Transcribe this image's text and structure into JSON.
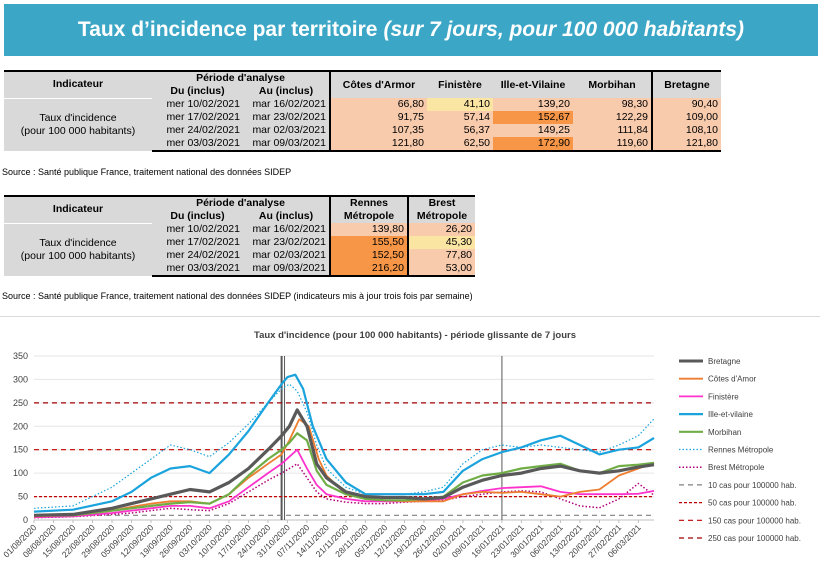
{
  "header": {
    "title": "Taux d’incidence par territoire",
    "subtitle": "(sur 7 jours, pour 100 000 habitants)"
  },
  "table1": {
    "col_indicateur": "Indicateur",
    "col_periode": "Période d'analyse",
    "col_du": "Du (inclus)",
    "col_au": "Au (inclus)",
    "territories": [
      "Côtes d'Armor",
      "Finistère",
      "Ille-et-Vilaine",
      "Morbihan",
      "Bretagne"
    ],
    "indicator_label_1": "Taux d'incidence",
    "indicator_label_2": "(pour 100 000 habitants)",
    "rows": [
      {
        "du": "mer 10/02/2021",
        "au": "mar 16/02/2021",
        "values": [
          "66,80",
          "41,10",
          "139,20",
          "98,30",
          "90,40"
        ]
      },
      {
        "du": "mer 17/02/2021",
        "au": "mar 23/02/2021",
        "values": [
          "91,75",
          "57,14",
          "152,67",
          "122,29",
          "109,00"
        ]
      },
      {
        "du": "mer 24/02/2021",
        "au": "mar 02/03/2021",
        "values": [
          "107,35",
          "56,37",
          "149,25",
          "111,84",
          "108,10"
        ]
      },
      {
        "du": "mer 03/03/2021",
        "au": "mar 09/03/2021",
        "values": [
          "121,80",
          "62,50",
          "172,90",
          "119,60",
          "121,80"
        ]
      }
    ],
    "source": "Source  : Santé publique France, traitement national des données SIDEP"
  },
  "table2": {
    "col_indicateur": "Indicateur",
    "col_periode": "Période d'analyse",
    "col_du": "Du (inclus)",
    "col_au": "Au (inclus)",
    "territory_1_line1": "Rennes",
    "territory_1_line2": "Métropole",
    "territory_2_line1": "Brest",
    "territory_2_line2": "Métropole",
    "indicator_label_1": "Taux d'incidence",
    "indicator_label_2": "(pour 100 000 habitants)",
    "rows": [
      {
        "du": "mer 10/02/2021",
        "au": "mar 16/02/2021",
        "values": [
          "139,80",
          "26,20"
        ]
      },
      {
        "du": "mer 17/02/2021",
        "au": "mar 23/02/2021",
        "values": [
          "155,50",
          "45,30"
        ]
      },
      {
        "du": "mer 24/02/2021",
        "au": "mar 02/03/2021",
        "values": [
          "152,50",
          "77,80"
        ]
      },
      {
        "du": "mer 03/03/2021",
        "au": "mar 09/03/2021",
        "values": [
          "216,20",
          "53,00"
        ]
      }
    ],
    "source": "Source  : Santé publique France, traitement national des données SIDEP (indicateurs mis à jour trois fois par semaine)"
  },
  "colors": {
    "banner": "#3ba6c6",
    "bretagne": "#595959",
    "cotes": "#ed7d31",
    "finistere": "#ff33cc",
    "ille": "#1aa3dd",
    "morbihan": "#70ad47",
    "rennes": "#1aa3dd",
    "brest": "#b0007a",
    "ref10": "#808080",
    "ref_red": "#c00000"
  },
  "chart_data": {
    "type": "line",
    "title": "Taux d'incidence (pour 100 000 habitants) - période glissante de 7 jours",
    "ylim": [
      0,
      350
    ],
    "yticks": [
      0,
      50,
      100,
      150,
      200,
      250,
      300,
      350
    ],
    "x_tick_labels": [
      "01/08/2020",
      "08/08/2020",
      "15/08/2020",
      "22/08/2020",
      "29/08/2020",
      "05/09/2020",
      "12/09/2020",
      "19/09/2020",
      "26/09/2020",
      "03/10/2020",
      "10/10/2020",
      "17/10/2020",
      "24/10/2020",
      "31/10/2020",
      "07/11/2020",
      "14/11/2020",
      "21/11/2020",
      "28/11/2020",
      "05/12/2020",
      "12/12/2020",
      "19/12/2020",
      "26/12/2020",
      "02/01/2021",
      "09/01/2021",
      "16/01/2021",
      "23/01/2021",
      "30/01/2021",
      "06/02/2021",
      "13/02/2021",
      "20/02/2021",
      "27/02/2021",
      "06/03/2021"
    ],
    "vertical_markers": [
      "30/10/2020",
      "31/10/2020",
      "16/01/2021"
    ],
    "series": [
      {
        "name": "Bretagne",
        "style": "solid-thick",
        "points": [
          [
            0,
            10
          ],
          [
            2,
            12
          ],
          [
            4,
            25
          ],
          [
            5,
            35
          ],
          [
            6,
            45
          ],
          [
            7,
            55
          ],
          [
            8,
            65
          ],
          [
            9,
            60
          ],
          [
            10,
            80
          ],
          [
            11,
            110
          ],
          [
            12,
            150
          ],
          [
            12.7,
            180
          ],
          [
            13.1,
            200
          ],
          [
            13.5,
            235
          ],
          [
            14,
            200
          ],
          [
            14.5,
            120
          ],
          [
            15,
            90
          ],
          [
            16,
            60
          ],
          [
            17,
            50
          ],
          [
            18,
            48
          ],
          [
            19,
            48
          ],
          [
            20,
            45
          ],
          [
            21,
            48
          ],
          [
            22,
            70
          ],
          [
            23,
            85
          ],
          [
            24,
            95
          ],
          [
            25,
            100
          ],
          [
            26,
            110
          ],
          [
            27,
            115
          ],
          [
            28,
            105
          ],
          [
            29,
            100
          ],
          [
            30,
            105
          ],
          [
            31,
            113
          ],
          [
            31.8,
            118
          ]
        ]
      },
      {
        "name": "Côtes d'Amor",
        "style": "solid",
        "points": [
          [
            0,
            8
          ],
          [
            2,
            10
          ],
          [
            4,
            20
          ],
          [
            5,
            28
          ],
          [
            6,
            35
          ],
          [
            7,
            40
          ],
          [
            8,
            40
          ],
          [
            9,
            35
          ],
          [
            10,
            55
          ],
          [
            11,
            90
          ],
          [
            12,
            120
          ],
          [
            12.7,
            140
          ],
          [
            13.1,
            170
          ],
          [
            13.6,
            215
          ],
          [
            14.1,
            200
          ],
          [
            14.6,
            130
          ],
          [
            15,
            95
          ],
          [
            16,
            55
          ],
          [
            17,
            45
          ],
          [
            18,
            42
          ],
          [
            19,
            40
          ],
          [
            20,
            40
          ],
          [
            21,
            40
          ],
          [
            22,
            55
          ],
          [
            23,
            60
          ],
          [
            24,
            58
          ],
          [
            25,
            60
          ],
          [
            26,
            55
          ],
          [
            27,
            50
          ],
          [
            28,
            60
          ],
          [
            29,
            65
          ],
          [
            30,
            95
          ],
          [
            31,
            110
          ],
          [
            31.8,
            122
          ]
        ]
      },
      {
        "name": "Finistère",
        "style": "solid",
        "points": [
          [
            0,
            6
          ],
          [
            2,
            8
          ],
          [
            4,
            15
          ],
          [
            5,
            20
          ],
          [
            6,
            25
          ],
          [
            7,
            30
          ],
          [
            8,
            30
          ],
          [
            9,
            25
          ],
          [
            10,
            40
          ],
          [
            11,
            70
          ],
          [
            12,
            100
          ],
          [
            12.7,
            120
          ],
          [
            13.1,
            135
          ],
          [
            13.5,
            150
          ],
          [
            14,
            110
          ],
          [
            14.5,
            75
          ],
          [
            15,
            55
          ],
          [
            16,
            45
          ],
          [
            17,
            40
          ],
          [
            18,
            40
          ],
          [
            19,
            40
          ],
          [
            20,
            42
          ],
          [
            21,
            45
          ],
          [
            22,
            55
          ],
          [
            23,
            62
          ],
          [
            24,
            68
          ],
          [
            25,
            70
          ],
          [
            26,
            72
          ],
          [
            27,
            60
          ],
          [
            28,
            55
          ],
          [
            29,
            55
          ],
          [
            30,
            55
          ],
          [
            31,
            56
          ],
          [
            31.8,
            62
          ]
        ]
      },
      {
        "name": "Ille-et-vilaine",
        "style": "solid",
        "points": [
          [
            0,
            18
          ],
          [
            2,
            22
          ],
          [
            4,
            40
          ],
          [
            5,
            60
          ],
          [
            6,
            90
          ],
          [
            7,
            110
          ],
          [
            8,
            115
          ],
          [
            9,
            100
          ],
          [
            10,
            140
          ],
          [
            11,
            190
          ],
          [
            12,
            250
          ],
          [
            12.7,
            290
          ],
          [
            13,
            305
          ],
          [
            13.4,
            310
          ],
          [
            13.8,
            280
          ],
          [
            14.3,
            200
          ],
          [
            15,
            130
          ],
          [
            16,
            80
          ],
          [
            17,
            55
          ],
          [
            18,
            55
          ],
          [
            19,
            55
          ],
          [
            20,
            55
          ],
          [
            21,
            60
          ],
          [
            22,
            105
          ],
          [
            23,
            130
          ],
          [
            24,
            145
          ],
          [
            25,
            155
          ],
          [
            26,
            170
          ],
          [
            27,
            180
          ],
          [
            28,
            160
          ],
          [
            29,
            140
          ],
          [
            30,
            150
          ],
          [
            31,
            155
          ],
          [
            31.8,
            175
          ]
        ]
      },
      {
        "name": "Morbihan",
        "style": "solid",
        "points": [
          [
            0,
            10
          ],
          [
            2,
            10
          ],
          [
            4,
            20
          ],
          [
            5,
            25
          ],
          [
            6,
            30
          ],
          [
            7,
            35
          ],
          [
            8,
            38
          ],
          [
            9,
            35
          ],
          [
            10,
            55
          ],
          [
            11,
            95
          ],
          [
            12,
            130
          ],
          [
            12.7,
            150
          ],
          [
            13.1,
            165
          ],
          [
            13.5,
            185
          ],
          [
            14,
            170
          ],
          [
            14.5,
            105
          ],
          [
            15,
            75
          ],
          [
            16,
            55
          ],
          [
            17,
            45
          ],
          [
            18,
            42
          ],
          [
            19,
            42
          ],
          [
            20,
            45
          ],
          [
            21,
            50
          ],
          [
            22,
            80
          ],
          [
            23,
            95
          ],
          [
            24,
            100
          ],
          [
            25,
            110
          ],
          [
            26,
            115
          ],
          [
            27,
            120
          ],
          [
            28,
            105
          ],
          [
            29,
            100
          ],
          [
            30,
            115
          ],
          [
            31,
            118
          ],
          [
            31.8,
            122
          ]
        ]
      },
      {
        "name": "Rennes Métropole",
        "style": "dotted",
        "points": [
          [
            0,
            25
          ],
          [
            2,
            30
          ],
          [
            4,
            70
          ],
          [
            5,
            100
          ],
          [
            6,
            130
          ],
          [
            7,
            160
          ],
          [
            8,
            150
          ],
          [
            9,
            135
          ],
          [
            10,
            165
          ],
          [
            11,
            205
          ],
          [
            12,
            250
          ],
          [
            12.7,
            280
          ],
          [
            13.1,
            290
          ],
          [
            13.5,
            275
          ],
          [
            14,
            230
          ],
          [
            14.5,
            160
          ],
          [
            15,
            110
          ],
          [
            16,
            70
          ],
          [
            17,
            55
          ],
          [
            18,
            55
          ],
          [
            19,
            55
          ],
          [
            20,
            60
          ],
          [
            21,
            70
          ],
          [
            22,
            120
          ],
          [
            23,
            150
          ],
          [
            24,
            160
          ],
          [
            25,
            155
          ],
          [
            26,
            160
          ],
          [
            27,
            155
          ],
          [
            28,
            150
          ],
          [
            29,
            145
          ],
          [
            30,
            160
          ],
          [
            31,
            180
          ],
          [
            31.8,
            216
          ]
        ]
      },
      {
        "name": "Brest Métropole",
        "style": "dotted",
        "points": [
          [
            0,
            5
          ],
          [
            2,
            7
          ],
          [
            4,
            12
          ],
          [
            5,
            15
          ],
          [
            6,
            20
          ],
          [
            7,
            25
          ],
          [
            8,
            22
          ],
          [
            9,
            20
          ],
          [
            10,
            35
          ],
          [
            11,
            60
          ],
          [
            12,
            85
          ],
          [
            12.7,
            100
          ],
          [
            13.1,
            110
          ],
          [
            13.5,
            120
          ],
          [
            14,
            90
          ],
          [
            14.5,
            60
          ],
          [
            15,
            45
          ],
          [
            16,
            38
          ],
          [
            17,
            35
          ],
          [
            18,
            35
          ],
          [
            19,
            38
          ],
          [
            20,
            40
          ],
          [
            21,
            42
          ],
          [
            22,
            50
          ],
          [
            23,
            55
          ],
          [
            24,
            60
          ],
          [
            25,
            62
          ],
          [
            26,
            60
          ],
          [
            27,
            45
          ],
          [
            28,
            30
          ],
          [
            29,
            26
          ],
          [
            30,
            45
          ],
          [
            31,
            78
          ],
          [
            31.8,
            53
          ]
        ]
      },
      {
        "name": "10 cas pour 100000 hab.",
        "style": "ref",
        "points": [
          [
            0,
            10
          ],
          [
            31.8,
            10
          ]
        ]
      },
      {
        "name": "50 cas pour 100000 hab.",
        "style": "ref",
        "points": [
          [
            0,
            50
          ],
          [
            31.8,
            50
          ]
        ]
      },
      {
        "name": "150 cas pour 100000 hab.",
        "style": "ref",
        "points": [
          [
            0,
            150
          ],
          [
            31.8,
            150
          ]
        ]
      },
      {
        "name": "250 cas pour 100000 hab.",
        "style": "ref",
        "points": [
          [
            0,
            250
          ],
          [
            31.8,
            250
          ]
        ]
      }
    ]
  }
}
